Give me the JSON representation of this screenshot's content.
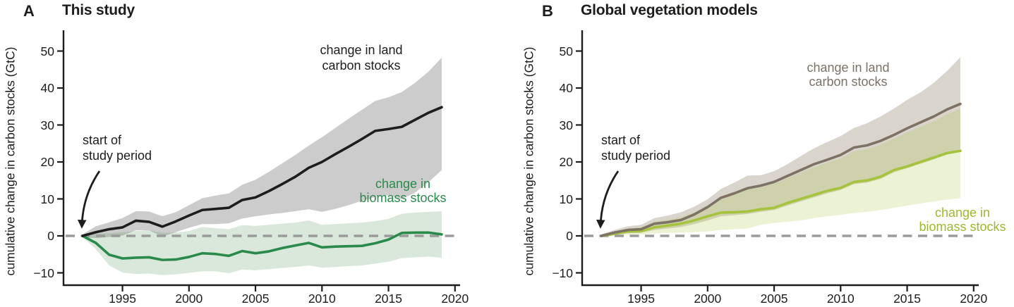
{
  "figure": {
    "panels": [
      {
        "letter": "A",
        "title": "This study",
        "y_axis_label": "cumulative change in carbon stocks (GtC)",
        "annotations": {
          "start_line1": "start of",
          "start_line2": "study period",
          "land_label_line1": "change in land",
          "land_label_line2": "carbon stocks",
          "biomass_label_line1": "change in",
          "biomass_label_line2": "biomass stocks"
        },
        "colors": {
          "land_line": "#1d1d1b",
          "land_band": "rgba(120,120,120,0.38)",
          "biomass_line": "#2a8a4b",
          "biomass_band": "rgba(80,150,90,0.22)",
          "land_label_text": "#1d1d1b",
          "biomass_label_text": "#2a8a4b"
        }
      },
      {
        "letter": "B",
        "title": "Global vegetation models",
        "y_axis_label": "cumulative change in carbon stocks (GtC)",
        "annotations": {
          "start_line1": "start of",
          "start_line2": "study period",
          "land_label_line1": "change in land",
          "land_label_line2": "carbon stocks",
          "biomass_label_line1": "change in",
          "biomass_label_line2": "biomass stocks"
        },
        "colors": {
          "land_line": "#7d7264",
          "land_band": "rgba(130,115,85,0.30)",
          "biomass_line": "#a6c33d",
          "biomass_band": "rgba(170,195,60,0.22)",
          "land_label_text": "#7b7268",
          "biomass_label_text": "#9cb832"
        }
      }
    ],
    "zero_line_color": "#9b9b9b",
    "axis_color": "#1d1d1b"
  },
  "chart_data": [
    {
      "type": "area",
      "title": "This study",
      "xlabel": "",
      "ylabel": "cumulative change in carbon stocks (GtC)",
      "xlim": [
        1990.6,
        2020.4
      ],
      "ylim": [
        -13,
        55.5
      ],
      "xticks": [
        1995,
        2000,
        2005,
        2010,
        2015,
        2020
      ],
      "yticks": [
        50,
        40,
        30,
        20,
        10,
        0,
        -10
      ],
      "ytick_labels": [
        "50",
        "40",
        "30",
        "20",
        "10",
        "0",
        "−10"
      ],
      "grid": false,
      "zero_reference_line": "dashed gray at y=0",
      "legend_position": "inline text annotations",
      "x": [
        1992,
        1993,
        1994,
        1995,
        1996,
        1997,
        1998,
        1999,
        2000,
        2001,
        2002,
        2003,
        2004,
        2005,
        2006,
        2007,
        2008,
        2009,
        2010,
        2011,
        2012,
        2013,
        2014,
        2015,
        2016,
        2017,
        2018,
        2019
      ],
      "series": [
        {
          "name": "change in land carbon stocks",
          "values": [
            0,
            1.0,
            1.8,
            2.3,
            4.1,
            3.8,
            2.5,
            3.9,
            5.5,
            7.0,
            7.3,
            7.6,
            9.7,
            10.4,
            12.1,
            14.0,
            16.0,
            18.4,
            20.0,
            22.1,
            24.1,
            26.2,
            28.4,
            28.9,
            29.5,
            31.4,
            33.3,
            34.8
          ],
          "band_upper": [
            0.4,
            2.6,
            3.7,
            4.8,
            6.7,
            6.6,
            5.3,
            6.4,
            8.3,
            10.2,
            10.9,
            11.5,
            13.8,
            15.2,
            17.3,
            19.6,
            21.9,
            24.4,
            26.7,
            29.2,
            31.7,
            34.1,
            36.5,
            37.5,
            38.9,
            41.4,
            44.4,
            48.2
          ],
          "band_lower": [
            -0.4,
            -0.6,
            -0.3,
            0.1,
            1.5,
            1.5,
            -0.2,
            1.0,
            2.2,
            3.2,
            3.2,
            3.4,
            4.7,
            5.3,
            5.8,
            6.2,
            6.7,
            7.2,
            6.5,
            7.3,
            8.3,
            9.5,
            10.5,
            11.0,
            10.0,
            11.7,
            14.5,
            17.8
          ]
        },
        {
          "name": "change in biomass stocks",
          "values": [
            0,
            -1.9,
            -5.1,
            -6.1,
            -5.9,
            -5.8,
            -6.5,
            -6.4,
            -5.7,
            -4.7,
            -4.9,
            -5.4,
            -4.1,
            -4.7,
            -4.2,
            -3.3,
            -2.6,
            -1.9,
            -3.1,
            -2.9,
            -2.8,
            -2.7,
            -2.0,
            -1.0,
            0.8,
            0.9,
            0.9,
            0.4
          ],
          "band_upper": [
            0.3,
            0.6,
            0.7,
            1.0,
            1.3,
            1.5,
            0.8,
            0.9,
            1.3,
            2.4,
            2.1,
            1.8,
            2.9,
            2.7,
            3.0,
            3.3,
            3.6,
            4.2,
            3.0,
            3.2,
            3.4,
            3.6,
            4.0,
            4.6,
            6.0,
            6.3,
            6.5,
            6.7
          ],
          "band_lower": [
            -0.3,
            -3.6,
            -8.0,
            -9.9,
            -10.3,
            -10.2,
            -10.6,
            -10.4,
            -10.0,
            -9.6,
            -9.6,
            -10.1,
            -9.1,
            -9.3,
            -9.0,
            -8.7,
            -8.4,
            -8.0,
            -8.6,
            -8.4,
            -8.2,
            -8.0,
            -7.5,
            -7.0,
            -6.0,
            -5.8,
            -5.6,
            -5.9
          ]
        }
      ]
    },
    {
      "type": "area",
      "title": "Global vegetation models",
      "xlabel": "",
      "ylabel": "cumulative change in carbon stocks (GtC)",
      "xlim": [
        1990.6,
        2020.4
      ],
      "ylim": [
        -13,
        55.5
      ],
      "xticks": [
        1995,
        2000,
        2005,
        2010,
        2015,
        2020
      ],
      "yticks": [
        50,
        40,
        30,
        20,
        10,
        0,
        -10
      ],
      "ytick_labels": [
        "50",
        "40",
        "30",
        "20",
        "10",
        "0",
        "−10"
      ],
      "grid": false,
      "zero_reference_line": "dashed gray at y=0",
      "legend_position": "inline text annotations",
      "x": [
        1992,
        1993,
        1994,
        1995,
        1996,
        1997,
        1998,
        1999,
        2000,
        2001,
        2002,
        2003,
        2004,
        2005,
        2006,
        2007,
        2008,
        2009,
        2010,
        2011,
        2012,
        2013,
        2014,
        2015,
        2016,
        2017,
        2018,
        2019
      ],
      "series": [
        {
          "name": "change in land carbon stocks",
          "values": [
            0,
            0.9,
            1.6,
            1.8,
            3.3,
            3.7,
            4.3,
            5.8,
            7.8,
            10.3,
            11.5,
            12.9,
            13.6,
            14.6,
            16.2,
            17.8,
            19.4,
            20.6,
            21.9,
            23.9,
            24.5,
            25.7,
            27.3,
            29.1,
            30.7,
            32.3,
            34.2,
            35.7
          ],
          "band_upper": [
            0.4,
            1.6,
            2.6,
            3.0,
            4.8,
            5.5,
            6.4,
            7.9,
            9.9,
            12.7,
            14.4,
            16.3,
            16.4,
            17.5,
            19.4,
            21.6,
            23.7,
            25.4,
            27.0,
            29.2,
            30.5,
            32.3,
            34.4,
            36.8,
            38.8,
            41.4,
            44.6,
            48.3
          ],
          "band_lower": [
            -0.4,
            0.2,
            0.7,
            0.8,
            1.6,
            2.0,
            2.4,
            3.2,
            4.2,
            5.3,
            5.6,
            5.9,
            6.5,
            7.0,
            8.2,
            9.3,
            10.4,
            11.5,
            12.4,
            14.0,
            14.4,
            15.4,
            17.2,
            18.3,
            19.5,
            20.7,
            22.0,
            22.8
          ]
        },
        {
          "name": "change in biomass stocks",
          "values": [
            0,
            0.6,
            1.2,
            1.3,
            2.3,
            2.8,
            3.3,
            4.2,
            5.3,
            6.3,
            6.4,
            6.6,
            7.2,
            7.6,
            8.9,
            10.0,
            11.1,
            12.2,
            13.0,
            14.6,
            15.0,
            16.0,
            17.8,
            18.8,
            20.0,
            21.2,
            22.4,
            23.0
          ],
          "band_upper": [
            0.3,
            1.2,
            2.0,
            2.3,
            3.8,
            4.4,
            5.0,
            6.4,
            8.3,
            10.5,
            11.4,
            12.6,
            13.2,
            14.1,
            15.6,
            17.1,
            18.6,
            19.8,
            21.0,
            22.9,
            23.5,
            24.7,
            26.3,
            28.0,
            29.5,
            31.0,
            32.9,
            34.4
          ],
          "band_lower": [
            -0.3,
            0.0,
            0.3,
            0.4,
            0.7,
            0.8,
            0.9,
            1.0,
            1.2,
            1.6,
            1.8,
            2.0,
            3.0,
            3.5,
            3.8,
            4.2,
            4.8,
            5.3,
            5.7,
            6.2,
            6.5,
            7.0,
            7.6,
            8.2,
            8.8,
            9.3,
            9.8,
            10.2
          ]
        }
      ]
    }
  ]
}
